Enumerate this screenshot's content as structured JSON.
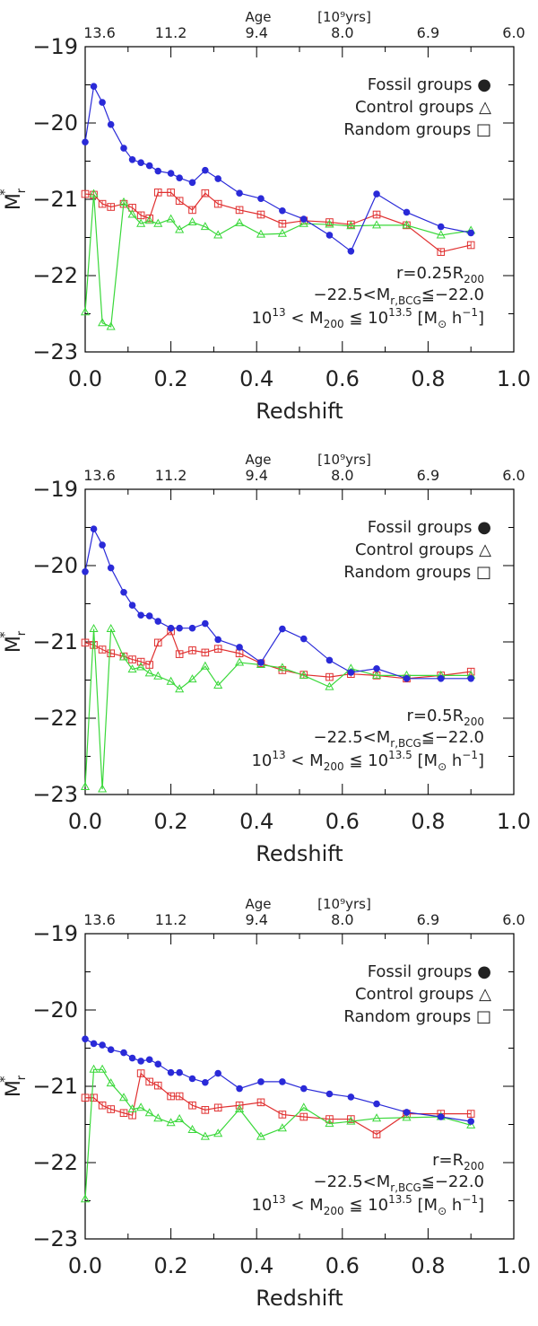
{
  "shared": {
    "age_label": "Age",
    "age_units": "[10⁹yrs]",
    "age_ticks": [
      "13.6",
      "11.2",
      "9.4",
      "8.0",
      "6.9",
      "6.0"
    ],
    "x_ticks": [
      "0.0",
      "0.2",
      "0.4",
      "0.6",
      "0.8",
      "1.0"
    ],
    "y_ticks": [
      "−19",
      "−20",
      "−21",
      "−22",
      "−23"
    ],
    "xlabel": "Redshift",
    "ylabel": "M",
    "ylabel_sup": "*",
    "ylabel_sub": "r",
    "legend": [
      "Fossil groups ●",
      "Control groups △",
      "Random groups □"
    ],
    "annotation_bcg": "−22.5<M",
    "annotation_bcg_sub": "r,BCG",
    "annotation_bcg_end": "≦−22.0",
    "annotation_mass": "10",
    "annotation_mass_sup1": "13",
    "annotation_mass_mid": " < M",
    "annotation_mass_sub": "200",
    "annotation_mass_le": " ≦ 10",
    "annotation_mass_sup2": "13.5",
    "annotation_mass_units": " [M",
    "annotation_mass_units_sub": "⊙",
    "annotation_mass_units_end": " h",
    "annotation_mass_units_sup": "−1",
    "annotation_mass_units_close": "]",
    "colors": {
      "fossil": "#2a2ad8",
      "control": "#3ad83a",
      "random": "#e03030"
    }
  },
  "chart_data": [
    {
      "type": "line",
      "radius_label": "r=0.25R",
      "radius_sub": "200",
      "xlabel": "Redshift",
      "ylabel": "M*r",
      "xlim": [
        0.0,
        1.0
      ],
      "ylim": [
        -19,
        -23
      ],
      "series": [
        {
          "name": "Fossil groups",
          "marker": "circle",
          "x": [
            0.0,
            0.02,
            0.04,
            0.06,
            0.09,
            0.11,
            0.13,
            0.15,
            0.17,
            0.2,
            0.22,
            0.25,
            0.28,
            0.31,
            0.36,
            0.41,
            0.46,
            0.51,
            0.57,
            0.62,
            0.68,
            0.75,
            0.83,
            0.9
          ],
          "y": [
            -20.25,
            -19.52,
            -19.73,
            -20.02,
            -20.33,
            -20.48,
            -20.52,
            -20.56,
            -20.63,
            -20.66,
            -20.72,
            -20.78,
            -20.62,
            -20.73,
            -20.92,
            -20.99,
            -21.15,
            -21.26,
            -21.47,
            -21.68,
            -20.93,
            -21.17,
            -21.36,
            -21.44
          ]
        },
        {
          "name": "Control groups",
          "marker": "triangle",
          "x": [
            0.0,
            0.02,
            0.04,
            0.06,
            0.09,
            0.11,
            0.13,
            0.15,
            0.17,
            0.2,
            0.22,
            0.25,
            0.28,
            0.31,
            0.36,
            0.41,
            0.46,
            0.51,
            0.57,
            0.62,
            0.68,
            0.75,
            0.83,
            0.9
          ],
          "y": [
            -22.48,
            -20.93,
            -22.62,
            -22.67,
            -21.04,
            -21.2,
            -21.32,
            -21.28,
            -21.32,
            -21.26,
            -21.4,
            -21.3,
            -21.36,
            -21.47,
            -21.31,
            -21.46,
            -21.45,
            -21.32,
            -21.33,
            -21.35,
            -21.34,
            -21.34,
            -21.47,
            -21.41
          ]
        },
        {
          "name": "Random groups",
          "marker": "square",
          "x": [
            0.0,
            0.02,
            0.04,
            0.06,
            0.09,
            0.11,
            0.13,
            0.15,
            0.17,
            0.2,
            0.22,
            0.25,
            0.28,
            0.31,
            0.36,
            0.41,
            0.46,
            0.51,
            0.57,
            0.62,
            0.68,
            0.75,
            0.83,
            0.9
          ],
          "y": [
            -20.93,
            -20.94,
            -21.06,
            -21.1,
            -21.06,
            -21.11,
            -21.21,
            -21.25,
            -20.91,
            -20.91,
            -21.02,
            -21.14,
            -20.92,
            -21.06,
            -21.14,
            -21.2,
            -21.32,
            -21.28,
            -21.3,
            -21.33,
            -21.2,
            -21.34,
            -21.69,
            -21.6
          ]
        }
      ]
    },
    {
      "type": "line",
      "radius_label": "r=0.5R",
      "radius_sub": "200",
      "xlabel": "Redshift",
      "ylabel": "M*r",
      "xlim": [
        0.0,
        1.0
      ],
      "ylim": [
        -19,
        -23
      ],
      "series": [
        {
          "name": "Fossil groups",
          "marker": "circle",
          "x": [
            0.0,
            0.02,
            0.04,
            0.06,
            0.09,
            0.11,
            0.13,
            0.15,
            0.17,
            0.2,
            0.22,
            0.25,
            0.28,
            0.31,
            0.36,
            0.41,
            0.46,
            0.51,
            0.57,
            0.62,
            0.68,
            0.75,
            0.83,
            0.9
          ],
          "y": [
            -20.08,
            -19.52,
            -19.73,
            -20.03,
            -20.35,
            -20.52,
            -20.65,
            -20.66,
            -20.73,
            -20.82,
            -20.82,
            -20.82,
            -20.76,
            -20.97,
            -21.07,
            -21.27,
            -20.83,
            -20.96,
            -21.24,
            -21.4,
            -21.35,
            -21.48,
            -21.48,
            -21.48
          ]
        },
        {
          "name": "Control groups",
          "marker": "triangle",
          "x": [
            0.0,
            0.02,
            0.04,
            0.06,
            0.09,
            0.11,
            0.13,
            0.15,
            0.17,
            0.2,
            0.22,
            0.25,
            0.28,
            0.31,
            0.36,
            0.41,
            0.46,
            0.51,
            0.57,
            0.62,
            0.68,
            0.75,
            0.83,
            0.9
          ],
          "y": [
            -22.9,
            -20.83,
            -22.93,
            -20.83,
            -21.2,
            -21.36,
            -21.33,
            -21.41,
            -21.45,
            -21.52,
            -21.62,
            -21.49,
            -21.32,
            -21.57,
            -21.27,
            -21.3,
            -21.34,
            -21.44,
            -21.59,
            -21.35,
            -21.44,
            -21.44,
            -21.44,
            -21.44
          ]
        },
        {
          "name": "Random groups",
          "marker": "square",
          "x": [
            0.0,
            0.02,
            0.04,
            0.06,
            0.09,
            0.11,
            0.13,
            0.15,
            0.17,
            0.2,
            0.22,
            0.25,
            0.28,
            0.31,
            0.36,
            0.41,
            0.46,
            0.51,
            0.57,
            0.62,
            0.68,
            0.75,
            0.83,
            0.9
          ],
          "y": [
            -21.01,
            -21.04,
            -21.1,
            -21.15,
            -21.19,
            -21.23,
            -21.26,
            -21.3,
            -21.01,
            -20.86,
            -21.16,
            -21.11,
            -21.14,
            -21.09,
            -21.15,
            -21.28,
            -21.37,
            -21.43,
            -21.46,
            -21.42,
            -21.44,
            -21.48,
            -21.44,
            -21.39
          ]
        }
      ]
    },
    {
      "type": "line",
      "radius_label": "r=R",
      "radius_sub": "200",
      "xlabel": "Redshift",
      "ylabel": "M*r",
      "xlim": [
        0.0,
        1.0
      ],
      "ylim": [
        -19,
        -23
      ],
      "series": [
        {
          "name": "Fossil groups",
          "marker": "circle",
          "x": [
            0.0,
            0.02,
            0.04,
            0.06,
            0.09,
            0.11,
            0.13,
            0.15,
            0.17,
            0.2,
            0.22,
            0.25,
            0.28,
            0.31,
            0.36,
            0.41,
            0.46,
            0.51,
            0.57,
            0.62,
            0.68,
            0.75,
            0.83,
            0.9
          ],
          "y": [
            -20.38,
            -20.44,
            -20.46,
            -20.52,
            -20.56,
            -20.63,
            -20.67,
            -20.65,
            -20.71,
            -20.82,
            -20.82,
            -20.9,
            -20.95,
            -20.83,
            -21.03,
            -20.94,
            -20.94,
            -21.03,
            -21.1,
            -21.14,
            -21.23,
            -21.34,
            -21.4,
            -21.46
          ]
        },
        {
          "name": "Control groups",
          "marker": "triangle",
          "x": [
            0.0,
            0.02,
            0.04,
            0.06,
            0.09,
            0.11,
            0.13,
            0.15,
            0.17,
            0.2,
            0.22,
            0.25,
            0.28,
            0.31,
            0.36,
            0.41,
            0.46,
            0.51,
            0.57,
            0.62,
            0.68,
            0.75,
            0.83,
            0.9
          ],
          "y": [
            -22.48,
            -20.78,
            -20.78,
            -20.96,
            -21.15,
            -21.3,
            -21.28,
            -21.35,
            -21.42,
            -21.48,
            -21.43,
            -21.57,
            -21.66,
            -21.62,
            -21.3,
            -21.66,
            -21.55,
            -21.28,
            -21.49,
            -21.46,
            -21.42,
            -21.41,
            -21.4,
            -21.51
          ]
        },
        {
          "name": "Random groups",
          "marker": "square",
          "x": [
            0.0,
            0.02,
            0.04,
            0.06,
            0.09,
            0.11,
            0.13,
            0.15,
            0.17,
            0.2,
            0.22,
            0.25,
            0.28,
            0.31,
            0.36,
            0.41,
            0.46,
            0.51,
            0.57,
            0.62,
            0.68,
            0.75,
            0.83,
            0.9
          ],
          "y": [
            -21.15,
            -21.15,
            -21.25,
            -21.3,
            -21.35,
            -21.38,
            -20.83,
            -20.94,
            -20.99,
            -21.13,
            -21.13,
            -21.25,
            -21.31,
            -21.28,
            -21.25,
            -21.21,
            -21.37,
            -21.4,
            -21.43,
            -21.43,
            -21.63,
            -21.36,
            -21.36,
            -21.36
          ]
        }
      ]
    }
  ]
}
